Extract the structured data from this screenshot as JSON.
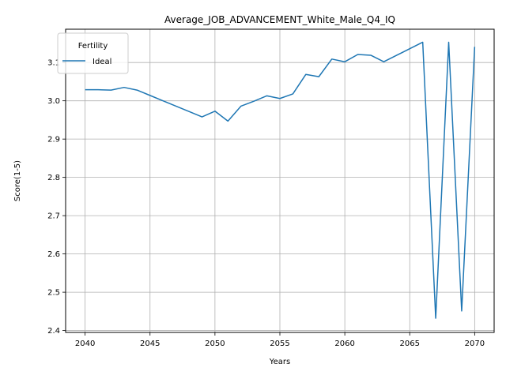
{
  "chart_data": {
    "type": "line",
    "title": "Average_JOB_ADVANCEMENT_White_Male_Q4_IQ",
    "xlabel": "Years",
    "ylabel": "Score(1-5)",
    "xlim": [
      2038.5,
      2071.5
    ],
    "ylim": [
      2.395,
      3.187
    ],
    "x_ticks": [
      2040,
      2045,
      2050,
      2055,
      2060,
      2065,
      2070
    ],
    "y_ticks": [
      2.4,
      2.5,
      2.6,
      2.7,
      2.8,
      2.9,
      3.0,
      3.1
    ],
    "x_tick_labels": [
      "2040",
      "2045",
      "2050",
      "2055",
      "2060",
      "2065",
      "2070"
    ],
    "y_tick_labels": [
      "2.4",
      "2.5",
      "2.6",
      "2.7",
      "2.8",
      "2.9",
      "3.0",
      "3.1"
    ],
    "grid": true,
    "legend": {
      "title": "Fertility",
      "position": "top-left"
    },
    "series": [
      {
        "name": "Ideal",
        "color": "#1f77b4",
        "x": [
          2040,
          2041,
          2042,
          2043,
          2044,
          2045,
          2046,
          2047,
          2048,
          2049,
          2050,
          2051,
          2052,
          2053,
          2054,
          2055,
          2056,
          2057,
          2058,
          2059,
          2060,
          2061,
          2062,
          2063,
          2064,
          2065,
          2066,
          2067,
          2068,
          2069,
          2070
        ],
        "y": [
          3.029,
          3.029,
          3.028,
          3.035,
          3.028,
          3.014,
          3.0,
          2.986,
          2.972,
          2.958,
          2.973,
          2.947,
          2.986,
          2.999,
          3.013,
          3.006,
          3.018,
          3.069,
          3.063,
          3.109,
          3.102,
          3.121,
          3.119,
          3.102,
          3.119,
          3.136,
          3.153,
          2.432,
          3.153,
          2.451,
          3.141
        ]
      }
    ]
  }
}
